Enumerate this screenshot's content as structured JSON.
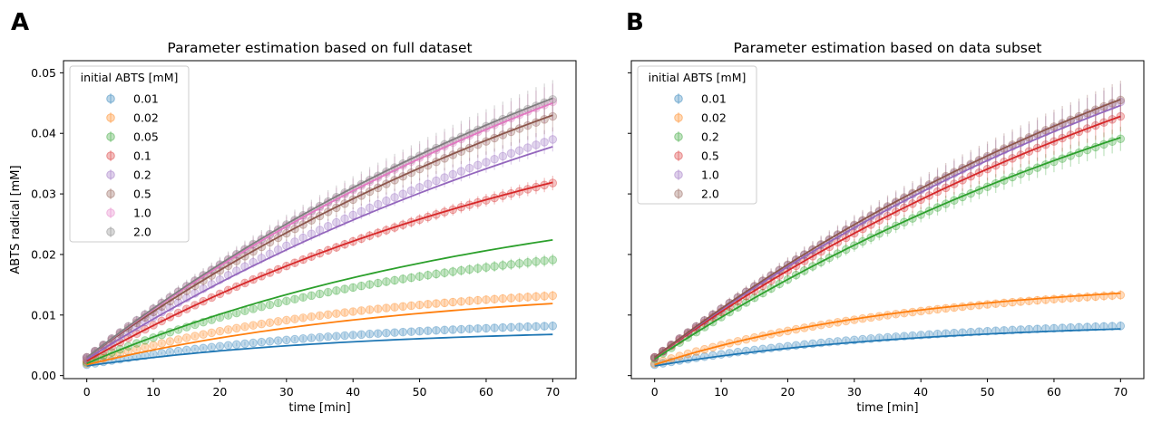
{
  "panels": [
    {
      "letter": "A",
      "chart_data": {
        "type": "scatter",
        "title": "Parameter estimation based on full dataset",
        "xlabel": "time [min]",
        "ylabel": "ABTS radical [mM]",
        "xlim": [
          -3.5,
          73.5
        ],
        "ylim": [
          -0.0005,
          0.052
        ],
        "xticks": [
          0,
          10,
          20,
          30,
          40,
          50,
          60,
          70
        ],
        "yticks": [
          0.0,
          0.01,
          0.02,
          0.03,
          0.04,
          0.05
        ],
        "ytick_labels": [
          "0.00",
          "0.01",
          "0.02",
          "0.03",
          "0.04",
          "0.05"
        ],
        "legend_title": "initial ABTS [mM]",
        "legend_position": "upper-left",
        "series": [
          {
            "name": "0.01",
            "color": "#1f77b4",
            "y0": 0.0018,
            "y_end": 0.0082,
            "k": 0.025,
            "err_end": 0.0007,
            "fit_y0": 0.0016,
            "fit_end": 0.0068,
            "fit_k": 0.025
          },
          {
            "name": "0.02",
            "color": "#ff7f0e",
            "y0": 0.002,
            "y_end": 0.0132,
            "k": 0.025,
            "err_end": 0.0008,
            "fit_y0": 0.0018,
            "fit_end": 0.0119,
            "fit_k": 0.02
          },
          {
            "name": "0.05",
            "color": "#2ca02c",
            "y0": 0.0022,
            "y_end": 0.0191,
            "k": 0.02,
            "err_end": 0.001,
            "fit_y0": 0.002,
            "fit_end": 0.0224,
            "fit_k": 0.015
          },
          {
            "name": "0.1",
            "color": "#d62728",
            "y0": 0.0025,
            "y_end": 0.0318,
            "k": 0.012,
            "err_end": 0.0012,
            "fit_y0": 0.0024,
            "fit_end": 0.0319,
            "fit_k": 0.012
          },
          {
            "name": "0.2",
            "color": "#9467bd",
            "y0": 0.0028,
            "y_end": 0.039,
            "k": 0.01,
            "err_end": 0.002,
            "fit_y0": 0.0027,
            "fit_end": 0.0378,
            "fit_k": 0.01
          },
          {
            "name": "0.5",
            "color": "#8c564b",
            "y0": 0.003,
            "y_end": 0.0428,
            "k": 0.01,
            "err_end": 0.0025,
            "fit_y0": 0.003,
            "fit_end": 0.043,
            "fit_k": 0.01
          },
          {
            "name": "1.0",
            "color": "#e377c2",
            "y0": 0.003,
            "y_end": 0.0452,
            "k": 0.01,
            "err_end": 0.003,
            "fit_y0": 0.003,
            "fit_end": 0.045,
            "fit_k": 0.01
          },
          {
            "name": "2.0",
            "color": "#7f7f7f",
            "y0": 0.003,
            "y_end": 0.0456,
            "k": 0.01,
            "err_end": 0.0032,
            "fit_y0": 0.003,
            "fit_end": 0.0458,
            "fit_k": 0.01
          }
        ]
      }
    },
    {
      "letter": "B",
      "chart_data": {
        "type": "scatter",
        "title": "Parameter estimation based on data subset",
        "xlabel": "time [min]",
        "ylabel": "",
        "xlim": [
          -3.5,
          73.5
        ],
        "ylim": [
          -0.0005,
          0.052
        ],
        "xticks": [
          0,
          10,
          20,
          30,
          40,
          50,
          60,
          70
        ],
        "yticks": [
          0.0,
          0.01,
          0.02,
          0.03,
          0.04,
          0.05
        ],
        "ytick_labels": [
          "",
          "",
          "",
          "",
          "",
          ""
        ],
        "legend_title": "initial ABTS [mM]",
        "legend_position": "upper-left",
        "series": [
          {
            "name": "0.01",
            "color": "#1f77b4",
            "y0": 0.0018,
            "y_end": 0.0082,
            "k": 0.025,
            "err_end": 0.0007,
            "fit_y0": 0.0016,
            "fit_end": 0.0077,
            "fit_k": 0.025
          },
          {
            "name": "0.02",
            "color": "#ff7f0e",
            "y0": 0.002,
            "y_end": 0.0133,
            "k": 0.025,
            "err_end": 0.0008,
            "fit_y0": 0.0018,
            "fit_end": 0.0136,
            "fit_k": 0.025
          },
          {
            "name": "0.2",
            "color": "#2ca02c",
            "y0": 0.0028,
            "y_end": 0.0391,
            "k": 0.01,
            "err_end": 0.002,
            "fit_y0": 0.0027,
            "fit_end": 0.0393,
            "fit_k": 0.01
          },
          {
            "name": "0.5",
            "color": "#d62728",
            "y0": 0.003,
            "y_end": 0.0428,
            "k": 0.01,
            "err_end": 0.0025,
            "fit_y0": 0.003,
            "fit_end": 0.0428,
            "fit_k": 0.01
          },
          {
            "name": "1.0",
            "color": "#9467bd",
            "y0": 0.003,
            "y_end": 0.0452,
            "k": 0.01,
            "err_end": 0.003,
            "fit_y0": 0.003,
            "fit_end": 0.0446,
            "fit_k": 0.01
          },
          {
            "name": "2.0",
            "color": "#8c564b",
            "y0": 0.003,
            "y_end": 0.0455,
            "k": 0.01,
            "err_end": 0.0032,
            "fit_y0": 0.003,
            "fit_end": 0.0456,
            "fit_k": 0.01
          }
        ]
      }
    }
  ]
}
